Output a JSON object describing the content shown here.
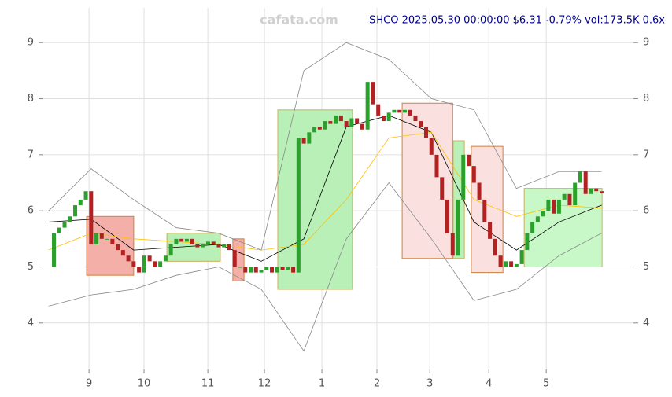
{
  "chart_data": {
    "type": "candlestick",
    "title": "SHCO 2025.05.30 00:00:00 $6.31 -0.79% vol:173.5K 0.6x",
    "watermark": "cafata.com",
    "x": [
      0,
      2,
      4,
      6,
      8,
      10,
      12,
      14,
      16,
      18,
      20,
      22,
      24,
      26,
      28,
      30,
      32,
      34,
      36,
      38,
      40,
      42,
      44,
      46,
      48,
      50,
      52,
      54,
      56,
      58,
      60,
      62,
      64,
      66,
      68,
      70,
      72,
      74,
      76,
      78,
      80,
      82,
      84,
      86,
      88,
      90,
      92,
      94,
      96,
      98,
      100,
      102,
      104,
      106,
      108,
      110,
      112,
      114,
      116,
      118,
      120,
      122,
      124,
      126,
      128,
      130,
      132,
      134,
      136,
      138,
      140,
      142,
      144,
      146,
      148,
      150,
      152,
      154,
      156,
      158,
      160,
      162,
      164,
      166,
      168,
      170,
      172,
      174,
      176,
      178,
      180,
      182,
      184,
      186,
      188,
      190,
      192,
      194,
      196,
      198,
      200,
      202,
      204,
      206,
      208
    ],
    "values": [
      5.0,
      5.6,
      5.7,
      5.8,
      5.9,
      6.1,
      6.2,
      6.35,
      5.4,
      5.6,
      5.5,
      5.5,
      5.4,
      5.3,
      5.2,
      5.1,
      5.0,
      4.9,
      5.2,
      5.1,
      5.0,
      5.1,
      5.2,
      5.4,
      5.5,
      5.45,
      5.5,
      5.4,
      5.35,
      5.4,
      5.45,
      5.4,
      5.35,
      5.4,
      5.3,
      5.0,
      5.0,
      4.9,
      5.0,
      4.9,
      4.95,
      5.0,
      4.9,
      5.0,
      4.95,
      5.0,
      4.9,
      7.3,
      7.2,
      7.4,
      7.5,
      7.45,
      7.6,
      7.55,
      7.7,
      7.6,
      7.5,
      7.65,
      7.55,
      7.45,
      8.3,
      7.9,
      7.7,
      7.6,
      7.75,
      7.8,
      7.75,
      7.8,
      7.7,
      7.6,
      7.5,
      7.3,
      7.0,
      6.6,
      6.2,
      5.6,
      5.2,
      6.2,
      7.0,
      6.8,
      6.5,
      6.2,
      5.8,
      5.5,
      5.2,
      5.0,
      5.1,
      5.0,
      5.05,
      5.3,
      5.6,
      5.8,
      5.9,
      6.0,
      6.2,
      5.95,
      6.2,
      6.3,
      6.1,
      6.5,
      6.7,
      6.3,
      6.4,
      6.35,
      6.31
    ],
    "up_color": "#2ca02c",
    "down_color": "#b22222",
    "lines": [
      {
        "color": "#000000",
        "x": [
          0,
          16,
          32,
          48,
          64,
          80,
          96,
          112,
          128,
          144,
          160,
          176,
          192,
          208
        ],
        "values": [
          5.8,
          5.85,
          5.3,
          5.35,
          5.4,
          5.1,
          5.5,
          7.5,
          7.7,
          7.4,
          5.8,
          5.3,
          5.8,
          6.1
        ]
      },
      {
        "color": "#ffbf00",
        "x": [
          0,
          16,
          32,
          48,
          64,
          80,
          96,
          112,
          128,
          144,
          160,
          176,
          192,
          208
        ],
        "values": [
          5.3,
          5.6,
          5.5,
          5.45,
          5.4,
          5.3,
          5.4,
          6.2,
          7.3,
          7.4,
          6.2,
          5.9,
          6.1,
          6.05
        ]
      },
      {
        "color": "#888888",
        "x": [
          0,
          16,
          32,
          48,
          64,
          80,
          96,
          112,
          128,
          144,
          160,
          176,
          192,
          208
        ],
        "values": [
          6.0,
          6.75,
          6.2,
          5.7,
          5.6,
          5.3,
          8.5,
          9.0,
          8.7,
          8.0,
          7.8,
          6.4,
          6.7,
          6.7
        ]
      },
      {
        "color": "#888888",
        "x": [
          0,
          16,
          32,
          48,
          64,
          80,
          96,
          112,
          128,
          144,
          160,
          176,
          192,
          208
        ],
        "values": [
          4.3,
          4.5,
          4.6,
          4.85,
          5.0,
          4.6,
          3.5,
          5.5,
          6.5,
          5.5,
          4.4,
          4.6,
          5.2,
          5.6
        ]
      }
    ],
    "boxes": [
      {
        "x": [
          14.3,
          32.0
        ],
        "y": [
          4.85,
          5.9
        ],
        "color": "#f4b0a8"
      },
      {
        "x": [
          44.5,
          64.6
        ],
        "y": [
          5.1,
          5.6
        ],
        "color": "#b8f0b8"
      },
      {
        "x": [
          69.3,
          73.5
        ],
        "y": [
          4.75,
          5.5
        ],
        "color": "#f4b0a8"
      },
      {
        "x": [
          86.2,
          114.3
        ],
        "y": [
          4.6,
          7.8
        ],
        "color": "#b8f0b8"
      },
      {
        "x": [
          133.0,
          152.0
        ],
        "y": [
          5.15,
          7.92
        ],
        "color": "#fbe0e0"
      },
      {
        "x": [
          152.2,
          156.4
        ],
        "y": [
          5.15,
          7.25
        ],
        "color": "#b8f0b8"
      },
      {
        "x": [
          159.0,
          170.9
        ],
        "y": [
          4.9,
          7.15
        ],
        "color": "#fbe0e0"
      },
      {
        "x": [
          178.9,
          208.2
        ],
        "y": [
          5.0,
          6.4
        ],
        "color": "#c8f8c8"
      }
    ],
    "xlim": [
      -2,
      220
    ],
    "ylim": [
      3.17,
      9.62
    ],
    "xticks": [
      {
        "value": 15.2,
        "label": "9"
      },
      {
        "value": 35.9,
        "label": "10"
      },
      {
        "value": 59.9,
        "label": "11"
      },
      {
        "value": 81.2,
        "label": "12"
      },
      {
        "value": 102.8,
        "label": "1"
      },
      {
        "value": 123.5,
        "label": "2"
      },
      {
        "value": 143.4,
        "label": "3"
      },
      {
        "value": 165.6,
        "label": "4"
      },
      {
        "value": 187.2,
        "label": "5"
      }
    ],
    "yticks": [
      4,
      5,
      6,
      7,
      8,
      9
    ],
    "grid": true
  }
}
